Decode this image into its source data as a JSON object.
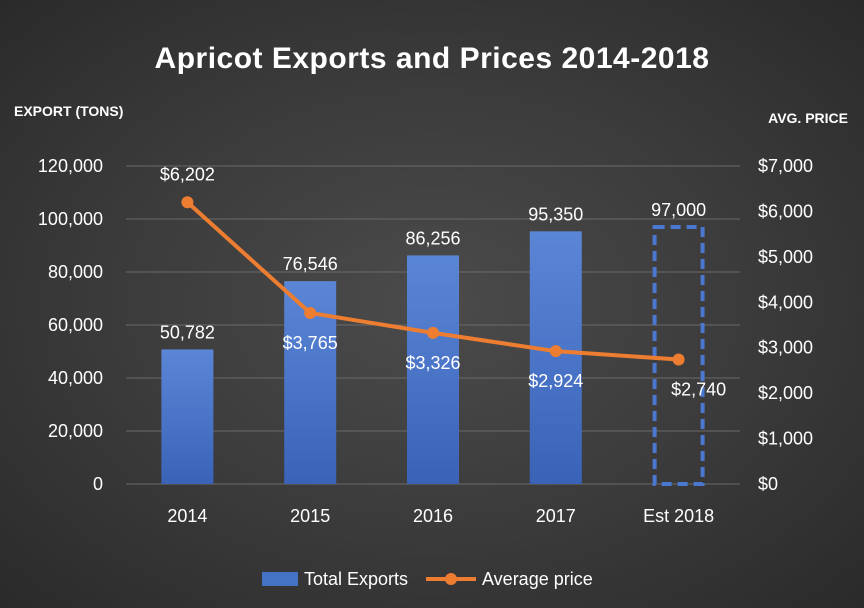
{
  "chart_data": {
    "type": "bar",
    "title": "Apricot Exports and Prices 2014-2018",
    "categories": [
      "2014",
      "2015",
      "2016",
      "2017",
      "Est 2018"
    ],
    "y_left_label": "EXPORT (TONS)",
    "y_right_label": "AVG. PRICE",
    "y_left_lim": [
      0,
      120000
    ],
    "y_right_lim": [
      0,
      7000
    ],
    "y_left_ticks": [
      "0",
      "20,000",
      "40,000",
      "60,000",
      "80,000",
      "100,000",
      "120,000"
    ],
    "y_right_ticks": [
      "$0",
      "$1,000",
      "$2,000",
      "$3,000",
      "$4,000",
      "$5,000",
      "$6,000",
      "$7,000"
    ],
    "grid": true,
    "legend_position": "bottom",
    "series": [
      {
        "name": "Total Exports",
        "type": "bar",
        "axis": "left",
        "values": [
          50782,
          76546,
          86256,
          95350,
          97000
        ],
        "labels": [
          "50,782",
          "76,546",
          "86,256",
          "95,350",
          "97,000"
        ],
        "estimated": [
          false,
          false,
          false,
          false,
          true
        ],
        "color": "#4472c4"
      },
      {
        "name": "Average price",
        "type": "line",
        "axis": "right",
        "values": [
          6202,
          3765,
          3326,
          2924,
          2740
        ],
        "labels": [
          "$6,202",
          "$3,765",
          "$3,326",
          "$2,924",
          "$2,740"
        ],
        "color": "#ed7d31"
      }
    ]
  }
}
